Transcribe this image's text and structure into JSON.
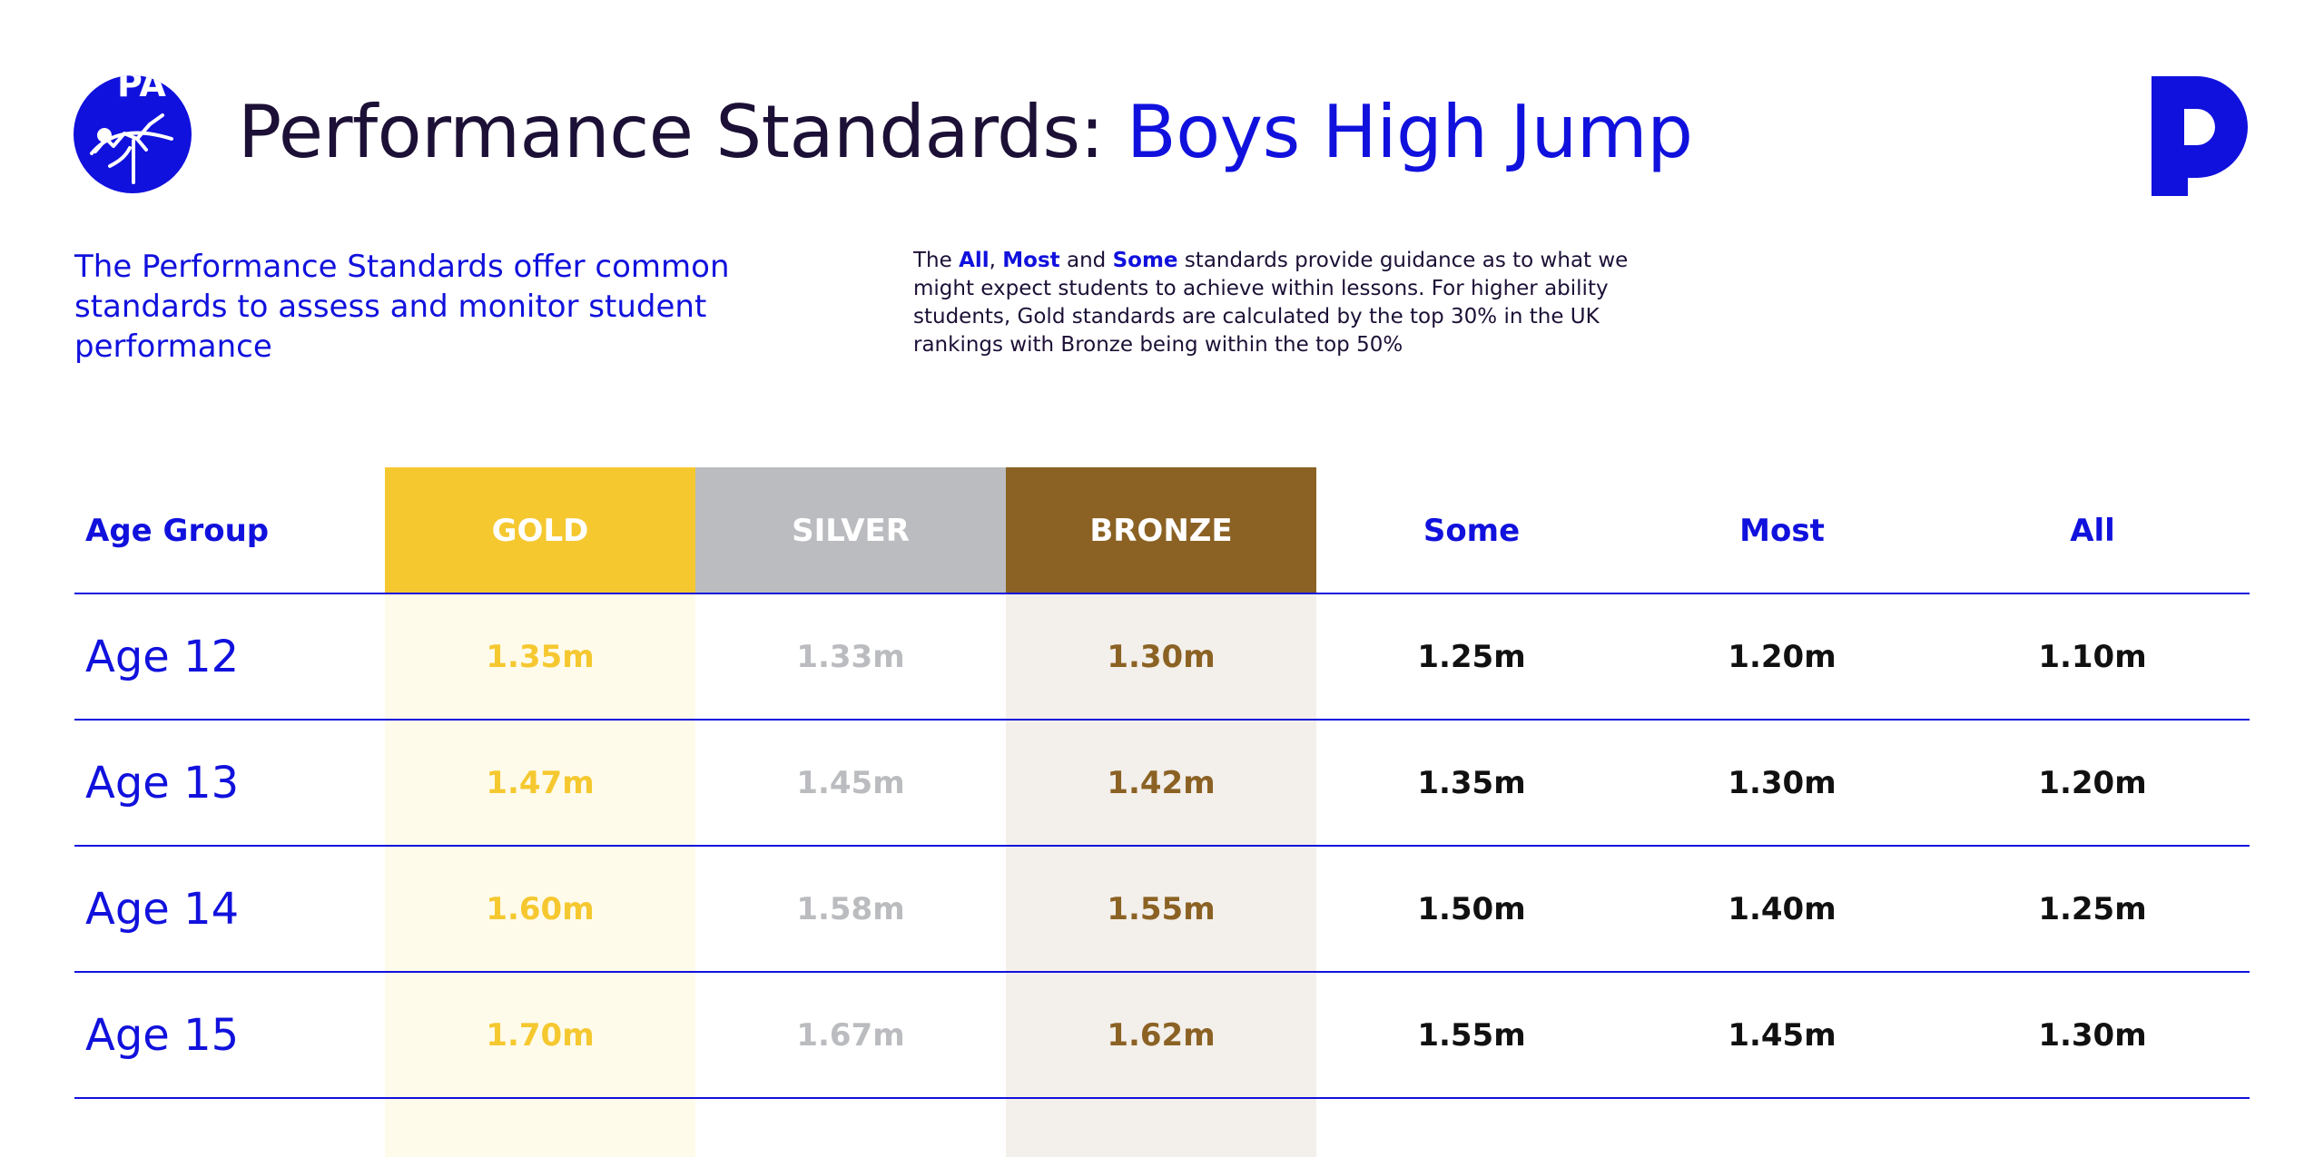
{
  "header": {
    "badge_text": "PA",
    "title_prefix": "Performance Standards: ",
    "title_accent": "Boys High Jump"
  },
  "intro_text": "The Performance Standards offer common standards to assess and monitor student performance",
  "guidance": {
    "p1": "The ",
    "all": "All",
    "comma": ", ",
    "most": "Most",
    "and": " and ",
    "some": "Some",
    "rest": " standards provide guidance as to what we might expect students to achieve within lessons. For higher ability students, Gold standards are calculated by the top 30% in the UK rankings with Bronze being within the top 50%"
  },
  "table": {
    "headers": [
      "Age Group",
      "GOLD",
      "SILVER",
      "BRONZE",
      "Some",
      "Most",
      "All"
    ],
    "rows": [
      {
        "age": "Age 12",
        "gold": "1.35m",
        "silver": "1.33m",
        "bronze": "1.30m",
        "some": "1.25m",
        "most": "1.20m",
        "all": "1.10m"
      },
      {
        "age": "Age 13",
        "gold": "1.47m",
        "silver": "1.45m",
        "bronze": "1.42m",
        "some": "1.35m",
        "most": "1.30m",
        "all": "1.20m"
      },
      {
        "age": "Age 14",
        "gold": "1.60m",
        "silver": "1.58m",
        "bronze": "1.55m",
        "some": "1.50m",
        "most": "1.40m",
        "all": "1.25m"
      },
      {
        "age": "Age 15",
        "gold": "1.70m",
        "silver": "1.67m",
        "bronze": "1.62m",
        "some": "1.55m",
        "most": "1.45m",
        "all": "1.30m"
      }
    ]
  },
  "colors": {
    "accent_blue": "#1111dd",
    "gold": "#f5c830",
    "gold_light": "#fffbea",
    "silver": "#bbbcbf",
    "bronze": "#8b6224",
    "bronze_light": "#f3efea",
    "dark": "#1c1036"
  },
  "icons": {
    "left_logo": "high-jump-athlete-icon",
    "right_logo": "brand-p-logo"
  }
}
